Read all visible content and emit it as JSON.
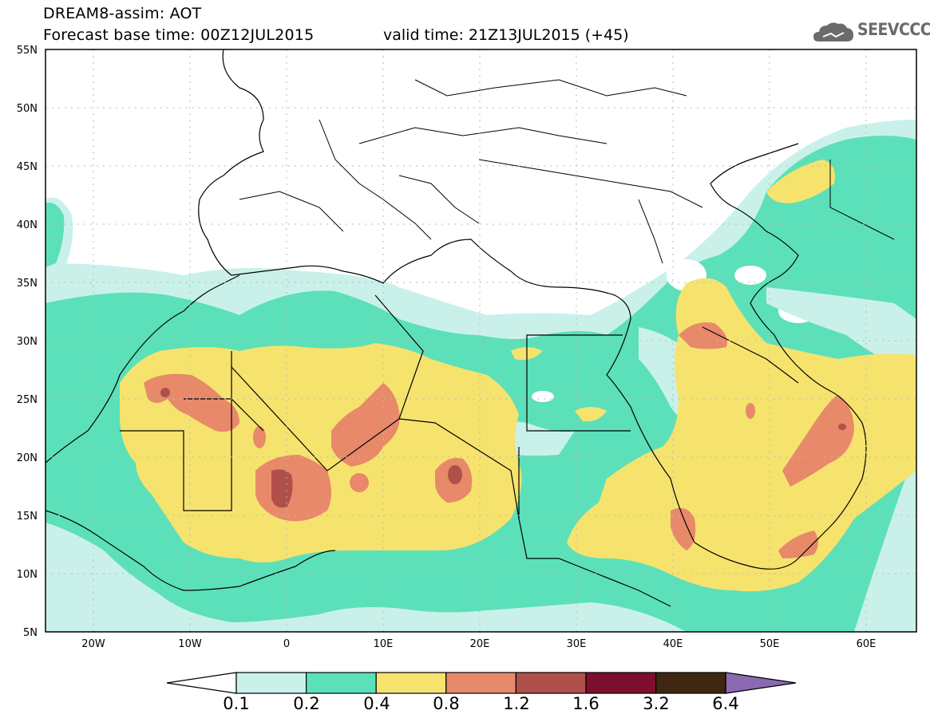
{
  "header": {
    "model_line": "DREAM8-assim: AOT",
    "base_time_line": "Forecast base time: 00Z12JUL2015",
    "valid_time_line": "valid time: 21Z13JUL2015 (+45)"
  },
  "logo": {
    "text": "SEEVCCC",
    "icon": "cloud-icon"
  },
  "map": {
    "lon_range": [
      -25,
      65
    ],
    "lat_range": [
      5,
      55
    ],
    "lat_labels": [
      "55N",
      "50N",
      "45N",
      "40N",
      "35N",
      "30N",
      "25N",
      "20N",
      "15N",
      "10N",
      "5N"
    ],
    "lon_labels": [
      "20W",
      "10W",
      "0",
      "10E",
      "20E",
      "30E",
      "40E",
      "50E",
      "60E"
    ]
  },
  "colorbar": {
    "labels": [
      "0.1",
      "0.2",
      "0.4",
      "0.8",
      "1.2",
      "1.6",
      "3.2",
      "6.4"
    ],
    "colors": [
      "#ffffff",
      "#c9f1ea",
      "#5ce0b9",
      "#f5e36e",
      "#e8896a",
      "#b0504a",
      "#7d0f2e",
      "#3f2712",
      "#8a6bb1"
    ]
  }
}
